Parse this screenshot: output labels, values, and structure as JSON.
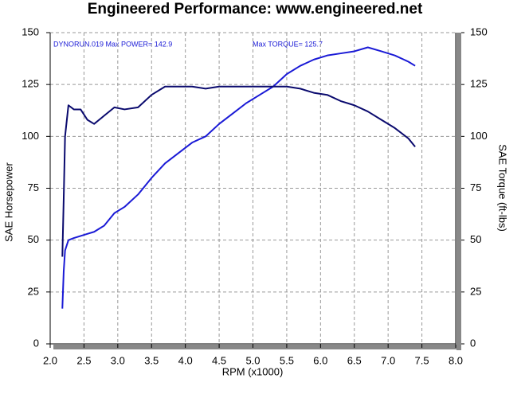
{
  "chart_data": {
    "type": "line",
    "title": "Engineered Performance:   www.engineered.net",
    "annotations": [
      "DYNORUN.019  Max POWER= 142.9",
      "Max TORQUE= 125.7"
    ],
    "xlabel": "RPM (x1000)",
    "ylabel": "SAE Horsepower",
    "y2label": "SAE Torque (ft-lbs)",
    "x": [
      2.18,
      2.2,
      2.22,
      2.27,
      2.35,
      2.45,
      2.55,
      2.65,
      2.8,
      2.95,
      3.1,
      3.3,
      3.5,
      3.7,
      3.9,
      4.1,
      4.3,
      4.5,
      4.7,
      4.9,
      5.1,
      5.3,
      5.5,
      5.7,
      5.9,
      6.1,
      6.3,
      6.5,
      6.7,
      6.9,
      7.1,
      7.3,
      7.4
    ],
    "series": [
      {
        "name": "SAE Horsepower",
        "color": "#1a1ad6",
        "values": [
          17,
          35,
          45,
          50,
          51,
          52,
          53,
          54,
          57,
          63,
          66,
          72,
          80,
          87,
          92,
          97,
          100,
          106,
          111,
          116,
          120,
          124,
          130,
          134,
          137,
          139,
          140,
          141,
          142.9,
          141,
          139,
          136,
          134
        ]
      },
      {
        "name": "SAE Torque (ft-lbs)",
        "color": "#0a0a6e",
        "axis": "y2",
        "values": [
          42,
          70,
          100,
          115,
          113,
          113,
          108,
          106,
          110,
          114,
          113,
          114,
          120,
          124,
          124,
          124,
          123,
          124,
          124,
          124,
          124,
          124,
          124,
          123,
          121,
          120,
          117,
          115,
          112,
          108,
          104,
          99,
          95
        ]
      }
    ],
    "xlim": [
      2,
      8
    ],
    "xticks": [
      {
        "value": 2,
        "label": "2.0"
      },
      2.5,
      {
        "value": 3,
        "label": "3.0"
      },
      3.5,
      {
        "value": 4,
        "label": "4.0"
      },
      4.5,
      {
        "value": 5,
        "label": "5.0"
      },
      5.5,
      {
        "value": 6,
        "label": "6.0"
      },
      6.5,
      {
        "value": 7,
        "label": "7.0"
      },
      7.5,
      {
        "value": 8,
        "label": "8.0"
      }
    ],
    "ylim": [
      0,
      150
    ],
    "yticks": [
      0,
      25,
      50,
      75,
      100,
      125,
      150
    ],
    "y2lim": [
      0,
      150
    ],
    "y2ticks": [
      0,
      25,
      50,
      75,
      100,
      125,
      150
    ],
    "grid": true
  }
}
